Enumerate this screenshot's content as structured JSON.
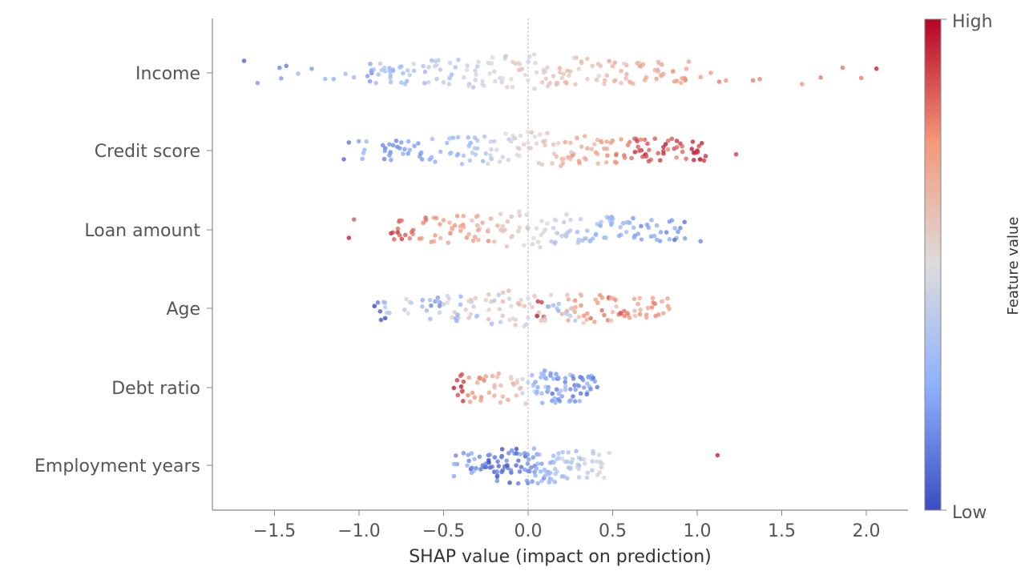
{
  "chart_data": {
    "type": "scatter",
    "subtype": "shap-beeswarm",
    "xlabel": "SHAP value (impact on prediction)",
    "xlim": [
      -1.88,
      2.25
    ],
    "xticks": [
      -1.5,
      -1.0,
      -0.5,
      0.0,
      0.5,
      1.0,
      1.5,
      2.0
    ],
    "xtick_labels": [
      "−1.5",
      "−1.0",
      "−0.5",
      "0.0",
      "0.5",
      "1.0",
      "1.5",
      "2.0"
    ],
    "colorbar": {
      "label": "Feature value",
      "high_label": "High",
      "low_label": "Low",
      "colormap": "coolwarm",
      "colors": [
        "#3b4cc0",
        "#8db0fe",
        "#dddcdc",
        "#f4987a",
        "#b40426"
      ]
    },
    "zero_line": true,
    "features": [
      {
        "name": "Income",
        "points": [
          [
            -1.68,
            0.05
          ],
          [
            -1.6,
            0.2
          ],
          [
            -1.47,
            0.15
          ],
          [
            -1.43,
            0.12
          ],
          [
            -1.46,
            0.2
          ],
          [
            -1.36,
            0.3
          ],
          [
            -1.28,
            0.2
          ],
          [
            -1.2,
            0.3
          ],
          [
            -1.15,
            0.25
          ],
          [
            -1.08,
            0.3
          ],
          [
            -1.03,
            0.3
          ],
          [
            -0.95,
            0.2
          ],
          [
            -0.9,
            0.3
          ],
          [
            -0.85,
            0.35
          ],
          [
            -0.8,
            0.3
          ],
          [
            -0.75,
            0.3
          ],
          [
            -0.7,
            0.4
          ],
          [
            -0.62,
            0.35
          ],
          [
            -0.55,
            0.4
          ],
          [
            -0.5,
            0.4
          ],
          [
            -0.43,
            0.35
          ],
          [
            -0.38,
            0.45
          ],
          [
            -0.3,
            0.4
          ],
          [
            -0.27,
            0.45
          ],
          [
            -0.2,
            0.45
          ],
          [
            -0.15,
            0.5
          ],
          [
            -0.1,
            0.5
          ],
          [
            -0.05,
            0.55
          ],
          [
            0.0,
            0.5
          ],
          [
            0.05,
            0.55
          ],
          [
            0.1,
            0.55
          ],
          [
            0.15,
            0.6
          ],
          [
            0.2,
            0.55
          ],
          [
            0.25,
            0.6
          ],
          [
            0.3,
            0.55
          ],
          [
            0.38,
            0.6
          ],
          [
            0.45,
            0.6
          ],
          [
            0.5,
            0.65
          ],
          [
            0.55,
            0.6
          ],
          [
            0.62,
            0.65
          ],
          [
            0.68,
            0.7
          ],
          [
            0.75,
            0.65
          ],
          [
            0.8,
            0.7
          ],
          [
            0.88,
            0.75
          ],
          [
            0.95,
            0.7
          ],
          [
            1.02,
            0.72
          ],
          [
            1.08,
            0.75
          ],
          [
            1.13,
            0.8
          ],
          [
            1.17,
            0.75
          ],
          [
            1.33,
            0.8
          ],
          [
            1.37,
            0.78
          ],
          [
            1.62,
            0.75
          ],
          [
            1.73,
            0.8
          ],
          [
            1.86,
            0.8
          ],
          [
            1.97,
            0.8
          ],
          [
            2.06,
            0.95
          ]
        ]
      },
      {
        "name": "Credit score",
        "points": [
          [
            -1.09,
            0.08
          ],
          [
            -1.06,
            0.1
          ],
          [
            -0.98,
            0.25
          ],
          [
            -0.85,
            0.15
          ],
          [
            -0.82,
            0.2
          ],
          [
            -0.75,
            0.2
          ],
          [
            -0.7,
            0.25
          ],
          [
            -0.65,
            0.2
          ],
          [
            -0.55,
            0.25
          ],
          [
            -0.48,
            0.3
          ],
          [
            -0.42,
            0.3
          ],
          [
            -0.35,
            0.3
          ],
          [
            -0.3,
            0.35
          ],
          [
            -0.25,
            0.35
          ],
          [
            -0.2,
            0.4
          ],
          [
            -0.15,
            0.45
          ],
          [
            -0.1,
            0.45
          ],
          [
            -0.05,
            0.5
          ],
          [
            0.0,
            0.5
          ],
          [
            0.05,
            0.55
          ],
          [
            0.1,
            0.6
          ],
          [
            0.15,
            0.6
          ],
          [
            0.2,
            0.65
          ],
          [
            0.25,
            0.65
          ],
          [
            0.3,
            0.7
          ],
          [
            0.35,
            0.7
          ],
          [
            0.4,
            0.7
          ],
          [
            0.45,
            0.72
          ],
          [
            0.5,
            0.75
          ],
          [
            0.55,
            0.75
          ],
          [
            0.6,
            0.8
          ],
          [
            0.65,
            0.85
          ],
          [
            0.67,
            0.9
          ],
          [
            0.7,
            0.85
          ],
          [
            0.75,
            0.85
          ],
          [
            0.8,
            0.9
          ],
          [
            0.85,
            0.85
          ],
          [
            0.9,
            0.9
          ],
          [
            0.98,
            0.95
          ],
          [
            1.0,
            0.97
          ],
          [
            1.04,
            0.9
          ],
          [
            1.05,
            0.92
          ],
          [
            1.23,
            0.9
          ]
        ]
      },
      {
        "name": "Loan amount",
        "points": [
          [
            -1.06,
            0.95
          ],
          [
            -1.03,
            0.85
          ],
          [
            -0.8,
            0.88
          ],
          [
            -0.76,
            0.85
          ],
          [
            -0.7,
            0.8
          ],
          [
            -0.62,
            0.78
          ],
          [
            -0.55,
            0.75
          ],
          [
            -0.5,
            0.72
          ],
          [
            -0.45,
            0.72
          ],
          [
            -0.4,
            0.7
          ],
          [
            -0.35,
            0.68
          ],
          [
            -0.3,
            0.65
          ],
          [
            -0.27,
            0.7
          ],
          [
            -0.2,
            0.62
          ],
          [
            -0.15,
            0.6
          ],
          [
            -0.1,
            0.58
          ],
          [
            -0.05,
            0.55
          ],
          [
            0.0,
            0.5
          ],
          [
            0.05,
            0.48
          ],
          [
            0.1,
            0.45
          ],
          [
            0.15,
            0.42
          ],
          [
            0.2,
            0.4
          ],
          [
            0.25,
            0.38
          ],
          [
            0.3,
            0.35
          ],
          [
            0.35,
            0.32
          ],
          [
            0.4,
            0.3
          ],
          [
            0.45,
            0.28
          ],
          [
            0.5,
            0.25
          ],
          [
            0.55,
            0.3
          ],
          [
            0.6,
            0.25
          ],
          [
            0.65,
            0.22
          ],
          [
            0.73,
            0.25
          ],
          [
            0.78,
            0.2
          ],
          [
            0.85,
            0.2
          ],
          [
            0.9,
            0.15
          ],
          [
            1.02,
            0.15
          ]
        ]
      },
      {
        "name": "Age",
        "points": [
          [
            -0.87,
            0.05
          ],
          [
            -0.82,
            0.35
          ],
          [
            -0.7,
            0.45
          ],
          [
            -0.6,
            0.3
          ],
          [
            -0.55,
            0.2
          ],
          [
            -0.5,
            0.4
          ],
          [
            -0.45,
            0.55
          ],
          [
            -0.4,
            0.3
          ],
          [
            -0.35,
            0.6
          ],
          [
            -0.3,
            0.4
          ],
          [
            -0.25,
            0.55
          ],
          [
            -0.2,
            0.35
          ],
          [
            -0.15,
            0.65
          ],
          [
            -0.1,
            0.5
          ],
          [
            -0.05,
            0.6
          ],
          [
            0.0,
            0.45
          ],
          [
            0.05,
            0.6
          ],
          [
            0.08,
            0.9
          ],
          [
            0.1,
            0.55
          ],
          [
            0.15,
            0.3
          ],
          [
            0.2,
            0.65
          ],
          [
            0.25,
            0.4
          ],
          [
            0.28,
            0.7
          ],
          [
            0.3,
            0.6
          ],
          [
            0.35,
            0.75
          ],
          [
            0.4,
            0.7
          ],
          [
            0.45,
            0.8
          ],
          [
            0.5,
            0.65
          ],
          [
            0.55,
            0.8
          ],
          [
            0.6,
            0.75
          ],
          [
            0.65,
            0.7
          ],
          [
            0.7,
            0.72
          ],
          [
            0.75,
            0.8
          ],
          [
            0.8,
            0.7
          ]
        ]
      },
      {
        "name": "Debt ratio",
        "points": [
          [
            -0.42,
            0.9
          ],
          [
            -0.4,
            0.85
          ],
          [
            -0.35,
            0.75
          ],
          [
            -0.3,
            0.7
          ],
          [
            -0.25,
            0.72
          ],
          [
            -0.2,
            0.68
          ],
          [
            -0.15,
            0.65
          ],
          [
            -0.1,
            0.6
          ],
          [
            -0.05,
            0.55
          ],
          [
            0.0,
            0.4
          ],
          [
            0.05,
            0.35
          ],
          [
            0.08,
            0.3
          ],
          [
            0.1,
            0.25
          ],
          [
            0.12,
            0.2
          ],
          [
            0.15,
            0.25
          ],
          [
            0.18,
            0.15
          ],
          [
            0.2,
            0.2
          ],
          [
            0.22,
            0.3
          ],
          [
            0.25,
            0.15
          ],
          [
            0.28,
            0.2
          ],
          [
            0.3,
            0.15
          ],
          [
            0.33,
            0.2
          ],
          [
            0.35,
            0.25
          ],
          [
            0.37,
            0.15
          ]
        ]
      },
      {
        "name": "Employment years",
        "points": [
          [
            -0.35,
            0.15
          ],
          [
            -0.32,
            0.3
          ],
          [
            -0.28,
            0.1
          ],
          [
            -0.25,
            0.15
          ],
          [
            -0.2,
            0.05
          ],
          [
            -0.18,
            0.1
          ],
          [
            -0.15,
            0.08
          ],
          [
            -0.12,
            0.12
          ],
          [
            -0.1,
            0.05
          ],
          [
            -0.08,
            0.15
          ],
          [
            -0.05,
            0.1
          ],
          [
            -0.02,
            0.2
          ],
          [
            0.0,
            0.15
          ],
          [
            0.03,
            0.2
          ],
          [
            0.05,
            0.25
          ],
          [
            0.08,
            0.2
          ],
          [
            0.1,
            0.3
          ],
          [
            0.13,
            0.25
          ],
          [
            0.15,
            0.3
          ],
          [
            0.18,
            0.35
          ],
          [
            0.2,
            0.3
          ],
          [
            0.22,
            0.4
          ],
          [
            0.25,
            0.35
          ],
          [
            0.3,
            0.4
          ],
          [
            0.33,
            0.45
          ],
          [
            0.38,
            0.4
          ],
          [
            0.42,
            0.45
          ],
          [
            0.44,
            0.5
          ],
          [
            -0.42,
            0.2
          ],
          [
            1.12,
            0.95
          ]
        ]
      }
    ]
  }
}
